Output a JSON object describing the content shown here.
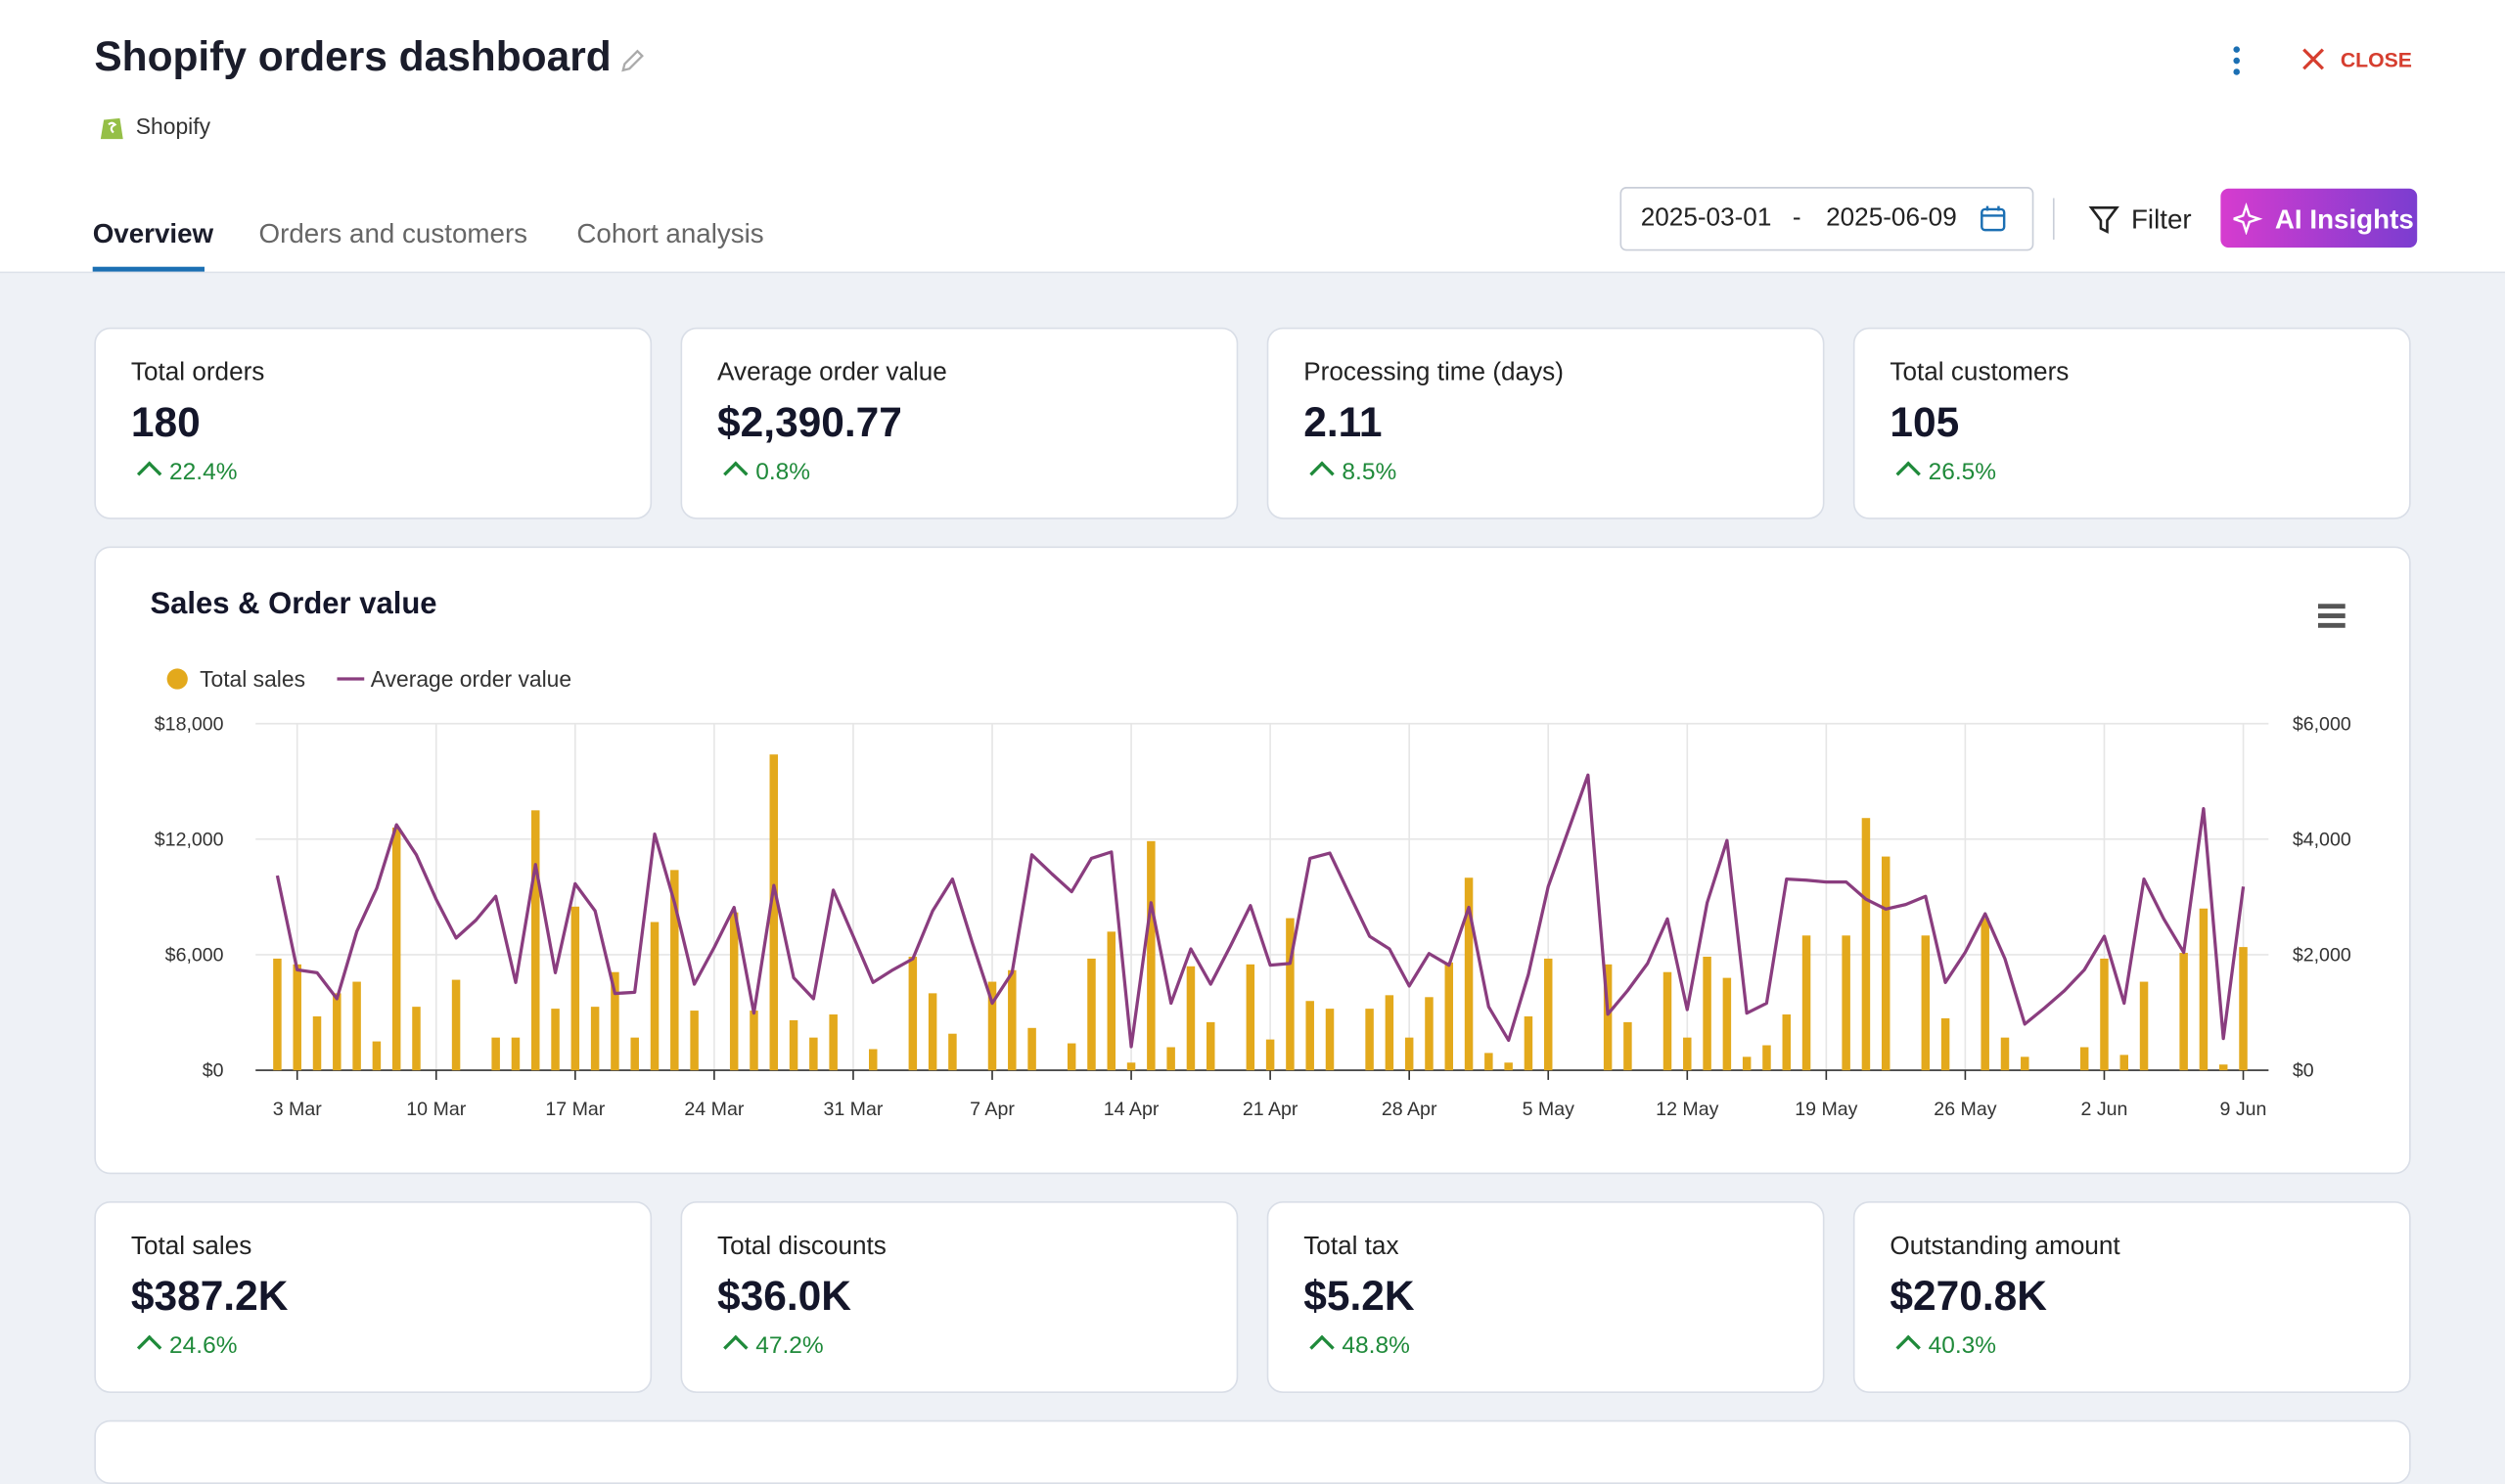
{
  "header": {
    "title": "Shopify orders dashboard",
    "source": "Shopify",
    "close": "CLOSE"
  },
  "tabs": [
    "Overview",
    "Orders and customers",
    "Cohort analysis"
  ],
  "date_range": {
    "start": "2025-03-01",
    "separator": "-",
    "end": "2025-06-09"
  },
  "actions": {
    "filter": "Filter",
    "ai": "AI Insights"
  },
  "kpis_top": [
    {
      "label": "Total orders",
      "value": "180",
      "change": "22.4%"
    },
    {
      "label": "Average order value",
      "value": "$2,390.77",
      "change": "0.8%"
    },
    {
      "label": "Processing time (days)",
      "value": "2.11",
      "change": "8.5%"
    },
    {
      "label": "Total customers",
      "value": "105",
      "change": "26.5%"
    }
  ],
  "kpis_bottom": [
    {
      "label": "Total sales",
      "value": "$387.2K",
      "change": "24.6%"
    },
    {
      "label": "Total discounts",
      "value": "$36.0K",
      "change": "47.2%"
    },
    {
      "label": "Total tax",
      "value": "$5.2K",
      "change": "48.8%"
    },
    {
      "label": "Outstanding amount",
      "value": "$270.8K",
      "change": "40.3%"
    }
  ],
  "chart_data": {
    "type": "combo",
    "title": "Sales & Order value",
    "grid": true,
    "categories": [
      null,
      "3 Mar",
      null,
      null,
      null,
      null,
      null,
      null,
      "10 Mar",
      null,
      null,
      null,
      null,
      null,
      null,
      "17 Mar",
      null,
      null,
      null,
      null,
      null,
      null,
      "24 Mar",
      null,
      null,
      null,
      null,
      null,
      null,
      "31 Mar",
      null,
      null,
      null,
      null,
      null,
      null,
      "7 Apr",
      null,
      null,
      null,
      null,
      null,
      null,
      "14 Apr",
      null,
      null,
      null,
      null,
      null,
      null,
      "21 Apr",
      null,
      null,
      null,
      null,
      null,
      null,
      "28 Apr",
      null,
      null,
      null,
      null,
      null,
      null,
      "5 May",
      null,
      null,
      null,
      null,
      null,
      null,
      "12 May",
      null,
      null,
      null,
      null,
      null,
      null,
      "19 May",
      null,
      null,
      null,
      null,
      null,
      null,
      "26 May",
      null,
      null,
      null,
      null,
      null,
      null,
      "2 Jun",
      null,
      null,
      null,
      null,
      null,
      null,
      "9 Jun"
    ],
    "series": [
      {
        "name": "Total sales",
        "type": "bar",
        "color": "#e3a91c",
        "values": [
          5800,
          5500,
          2800,
          4000,
          4600,
          1500,
          12600,
          3300,
          0,
          4700,
          0,
          1700,
          1700,
          13500,
          3200,
          8500,
          3300,
          5100,
          1700,
          7700,
          10400,
          3100,
          0,
          8200,
          3100,
          16400,
          2600,
          1700,
          2900,
          0,
          1100,
          0,
          5900,
          4000,
          1900,
          0,
          4600,
          5200,
          2200,
          0,
          1400,
          5800,
          7200,
          400,
          11900,
          1200,
          5400,
          2500,
          0,
          5500,
          1600,
          7900,
          3600,
          3200,
          0,
          3200,
          3900,
          1700,
          3800,
          5600,
          10000,
          900,
          400,
          2800,
          5800,
          0,
          0,
          5500,
          2500,
          0,
          5100,
          1700,
          5900,
          4800,
          700,
          1300,
          2900,
          7000,
          0,
          7000,
          13100,
          11100,
          0,
          7000,
          2700,
          0,
          7900,
          1700,
          700,
          0,
          0,
          1200,
          5800,
          800,
          4600,
          0,
          6100,
          8400,
          300,
          6400
        ]
      },
      {
        "name": "Average order value",
        "type": "line",
        "color": "#8a3d7f",
        "axis": "y2",
        "values": [
          3370,
          1740,
          1690,
          1240,
          2400,
          3150,
          4250,
          3730,
          2960,
          2290,
          2600,
          3010,
          1520,
          3560,
          1690,
          3230,
          2760,
          1330,
          1350,
          4090,
          2900,
          1490,
          2130,
          2820,
          990,
          3200,
          1600,
          1240,
          3120,
          2320,
          1520,
          1740,
          1930,
          2760,
          3310,
          2210,
          1160,
          1690,
          3730,
          3400,
          3090,
          3670,
          3780,
          410,
          2900,
          1160,
          2100,
          1490,
          2150,
          2850,
          1820,
          1850,
          3670,
          3760,
          3040,
          2320,
          2100,
          1460,
          2020,
          1820,
          2820,
          1100,
          520,
          1660,
          3180,
          4140,
          5110,
          970,
          1380,
          1850,
          2620,
          1050,
          2900,
          3980,
          990,
          1160,
          3310,
          3290,
          3260,
          3260,
          2960,
          2790,
          2870,
          3010,
          1520,
          2040,
          2710,
          1930,
          800,
          1080,
          1380,
          1740,
          2320,
          1160,
          3310,
          2620,
          2040,
          4530,
          550,
          3180
        ]
      }
    ],
    "ylim": [
      0,
      18000
    ],
    "yticks": [
      {
        "value": 0,
        "label": "$0"
      },
      {
        "value": 6000,
        "label": "$6,000"
      },
      {
        "value": 12000,
        "label": "$12,000"
      },
      {
        "value": 18000,
        "label": "$18,000"
      }
    ],
    "y2lim": [
      0,
      6000
    ],
    "y2ticks": [
      {
        "value": 0,
        "label": "$0"
      },
      {
        "value": 2000,
        "label": "$2,000"
      },
      {
        "value": 4000,
        "label": "$4,000"
      },
      {
        "value": 6000,
        "label": "$6,000"
      }
    ]
  }
}
